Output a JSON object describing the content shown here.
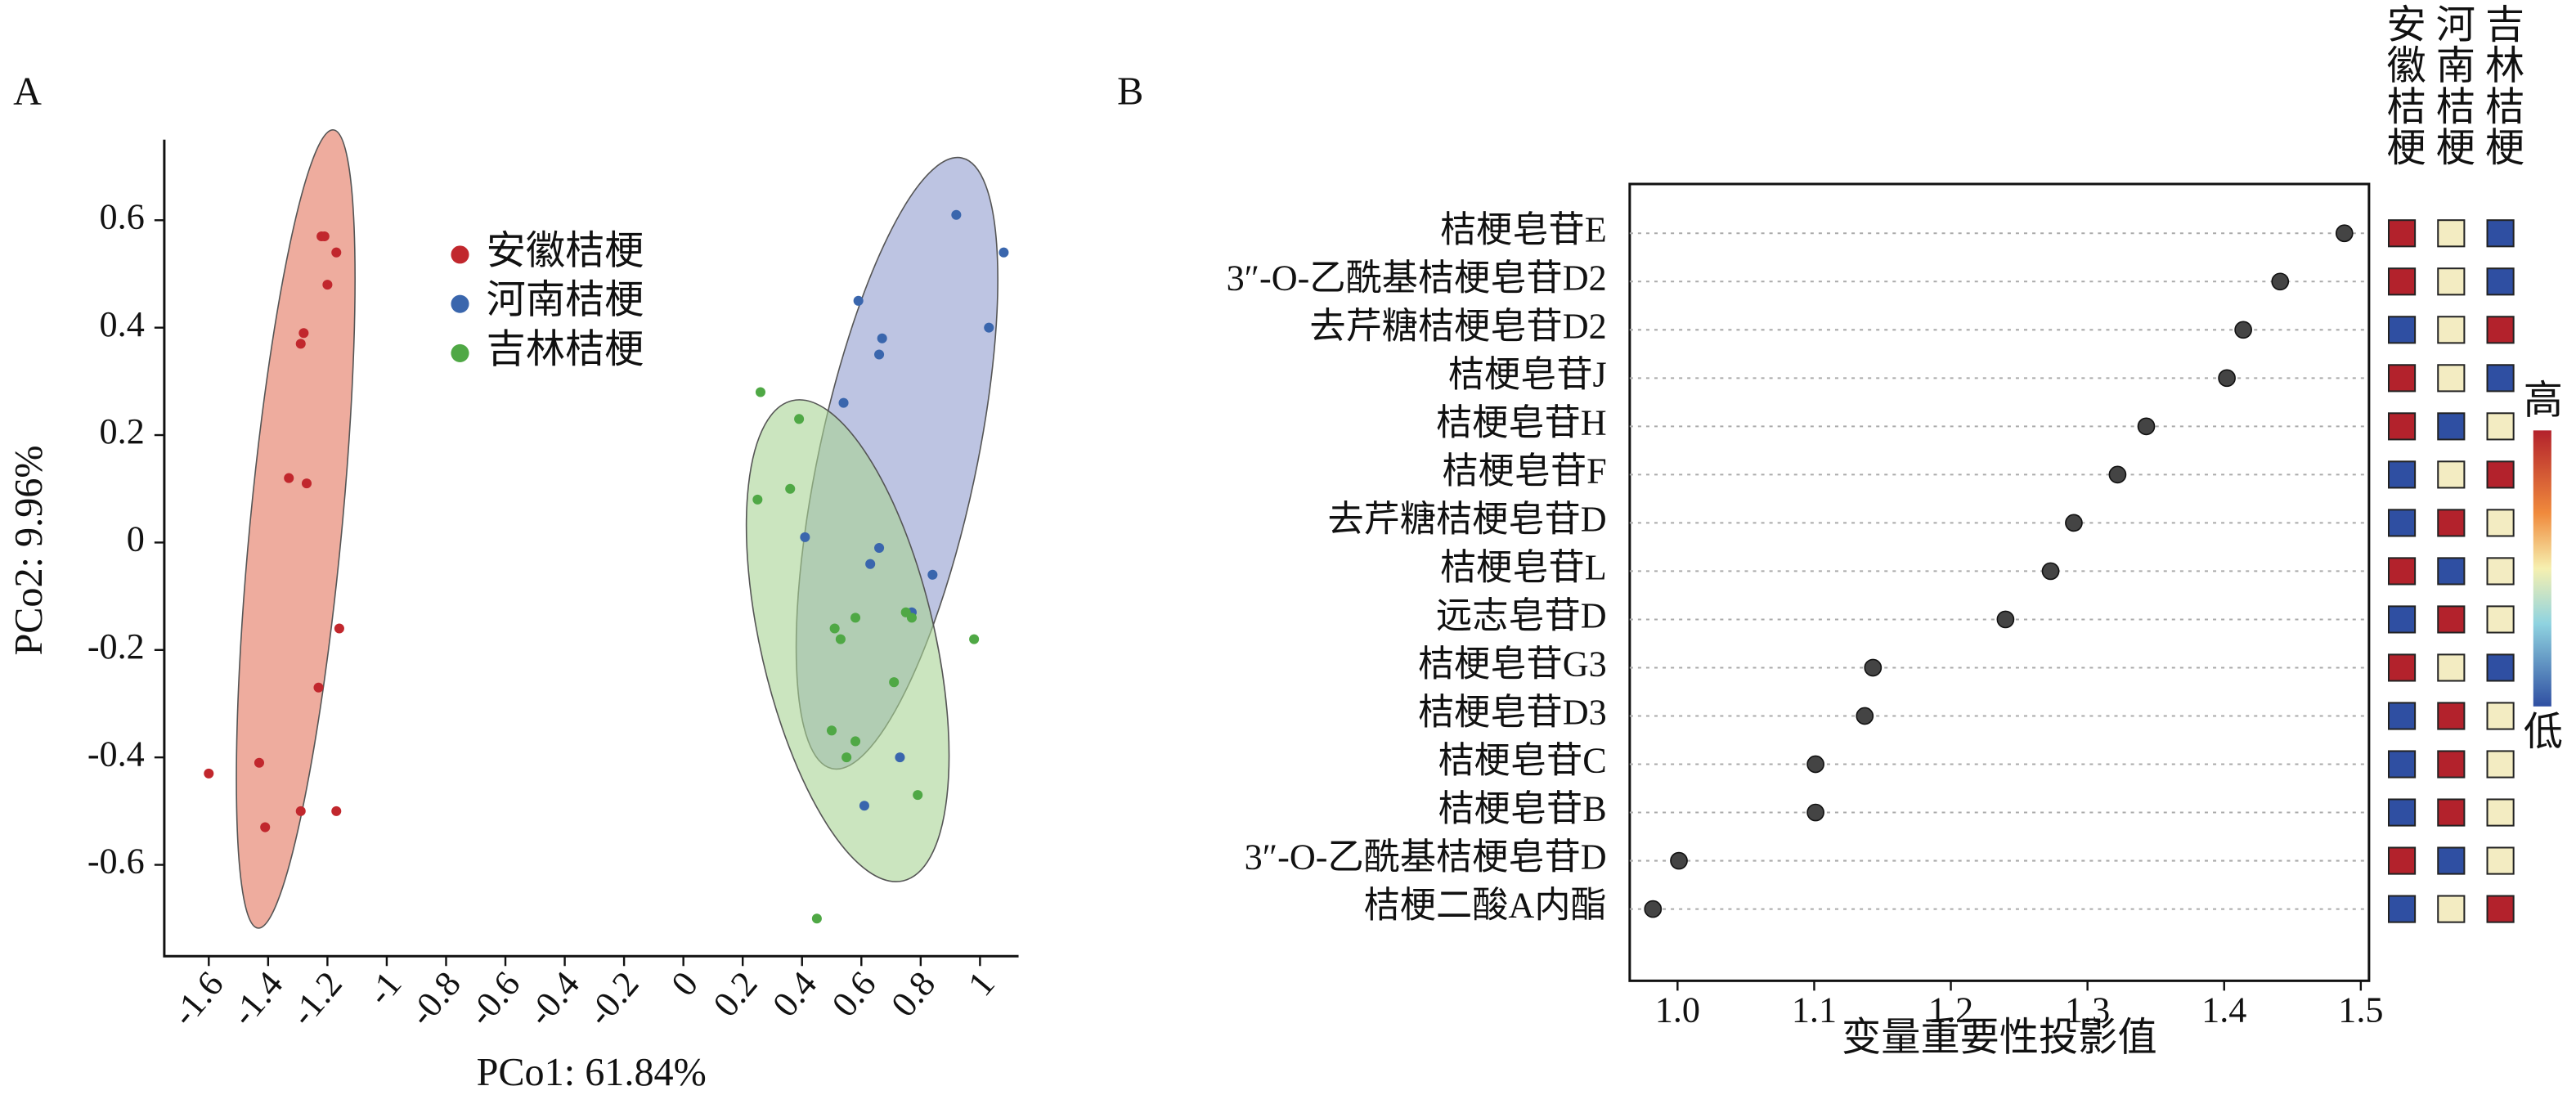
{
  "chart_data": [
    {
      "type": "scatter",
      "panel_label": "A",
      "xlabel": "PCo1: 61.84%",
      "ylabel": "PCo2: 9.96%",
      "xlim": [
        -1.75,
        1.13
      ],
      "ylim": [
        -0.77,
        0.75
      ],
      "xticks": [
        -1.6,
        -1.4,
        -1.2,
        -1.0,
        -0.8,
        -0.6,
        -0.4,
        -0.2,
        0,
        0.2,
        0.4,
        0.6,
        0.8,
        1.0
      ],
      "yticks": [
        -0.6,
        -0.4,
        -0.2,
        0,
        0.2,
        0.4,
        0.6
      ],
      "series": [
        {
          "name": "安徽桔梗",
          "color": "#c1272d",
          "x": [
            -1.22,
            -1.21,
            -1.17,
            -1.2,
            -1.28,
            -1.29,
            -1.33,
            -1.27,
            -1.16,
            -1.23,
            -1.6,
            -1.43,
            -1.41,
            -1.29,
            -1.17
          ],
          "y": [
            0.57,
            0.57,
            0.54,
            0.48,
            0.39,
            0.37,
            0.12,
            0.11,
            -0.16,
            -0.27,
            -0.43,
            -0.41,
            -0.53,
            -0.5,
            -0.5
          ]
        },
        {
          "name": "河南桔梗",
          "color": "#3a66ad",
          "x": [
            0.92,
            1.08,
            1.03,
            0.59,
            0.67,
            0.66,
            0.54,
            0.41,
            0.66,
            0.63,
            0.84,
            0.77,
            0.73,
            0.61
          ],
          "y": [
            0.61,
            0.54,
            0.4,
            0.45,
            0.38,
            0.35,
            0.26,
            0.01,
            -0.01,
            -0.04,
            -0.06,
            -0.13,
            -0.4,
            -0.49
          ]
        },
        {
          "name": "吉林桔梗",
          "color": "#4fa845",
          "x": [
            0.26,
            0.39,
            0.36,
            0.25,
            0.58,
            0.51,
            0.53,
            0.77,
            0.75,
            0.98,
            0.71,
            0.5,
            0.58,
            0.55,
            0.79,
            0.45
          ],
          "y": [
            0.28,
            0.23,
            0.1,
            0.08,
            -0.14,
            -0.16,
            -0.18,
            -0.14,
            -0.13,
            -0.18,
            -0.26,
            -0.35,
            -0.37,
            -0.4,
            -0.47,
            -0.7
          ]
        }
      ]
    },
    {
      "type": "dot",
      "panel_label": "B",
      "xlabel": "变量重要性投影值",
      "color": "#444444",
      "xlim": [
        0.965,
        1.506
      ],
      "xticks": [
        {
          "value": 1,
          "label": "1.0"
        },
        1.1,
        1.2,
        1.3,
        1.4,
        1.5
      ],
      "categories": [
        "桔梗皂苷E",
        "3″-O-乙酰基桔梗皂苷D2",
        "去芹糖桔梗皂苷D2",
        "桔梗皂苷J",
        "桔梗皂苷H",
        "桔梗皂苷F",
        "去芹糖桔梗皂苷D",
        "桔梗皂苷L",
        "远志皂苷D",
        "桔梗皂苷G3",
        "桔梗皂苷D3",
        "桔梗皂苷C",
        "桔梗皂苷B",
        "3″-O-乙酰基桔梗皂苷D",
        "桔梗二酸A内酯"
      ],
      "values": [
        1.488,
        1.441,
        1.414,
        1.402,
        1.343,
        1.322,
        1.29,
        1.273,
        1.24,
        1.143,
        1.137,
        1.101,
        1.101,
        1.001,
        0.982
      ],
      "heatmap": {
        "columns": [
          "安徽桔梗",
          "河南桔梗",
          "吉林桔梗"
        ],
        "colors": [
          "#2f4fa2",
          "#f3ecc2",
          "#b3222c"
        ],
        "scale_labels": [
          "高",
          "低"
        ],
        "values": [
          [
            1,
            0,
            -1
          ],
          [
            1,
            0,
            -1
          ],
          [
            -1,
            0,
            1
          ],
          [
            1,
            0,
            -1
          ],
          [
            1,
            -1,
            0
          ],
          [
            -1,
            0,
            1
          ],
          [
            -1,
            1,
            0
          ],
          [
            1,
            -1,
            0
          ],
          [
            -1,
            1,
            0
          ],
          [
            1,
            0,
            -1
          ],
          [
            -1,
            1,
            0
          ],
          [
            -1,
            1,
            0
          ],
          [
            -1,
            1,
            0
          ],
          [
            1,
            -1,
            0
          ],
          [
            -1,
            0,
            1
          ]
        ]
      }
    }
  ]
}
